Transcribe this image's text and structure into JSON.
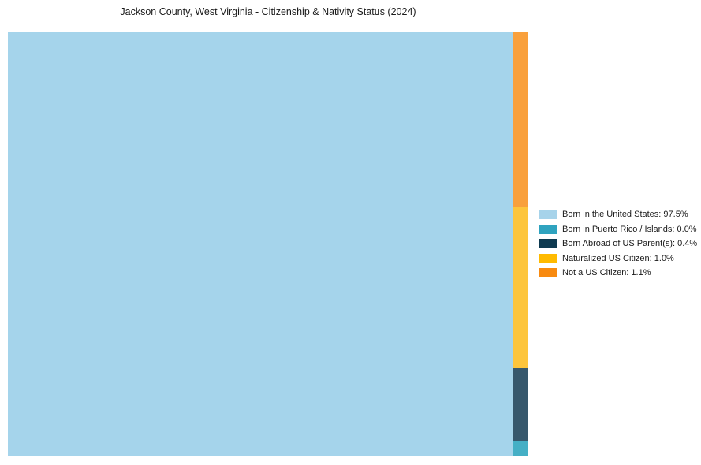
{
  "chart_data": {
    "type": "treemap",
    "title": "Jackson County, West Virginia - Citizenship & Nativity Status (2024)",
    "categories": [
      "Born in the United States",
      "Born in Puerto Rico / Islands",
      "Born Abroad of US Parent(s)",
      "Naturalized US Citizen",
      "Not a US Citizen"
    ],
    "values": [
      97.5,
      0.0,
      0.4,
      1.0,
      1.1
    ],
    "units": "percent",
    "legend_position": "right",
    "background_color": "#ffffff",
    "title_color": "#1a1a1a",
    "segments": [
      {
        "label": "Born in the United States",
        "value_pct": 97.5,
        "display": "Born in the United States: 97.5%",
        "color": "#a6d3ea",
        "fill": "#a5d4eb"
      },
      {
        "label": "Born in Puerto Rico / Islands",
        "value_pct": 0.0,
        "display": "Born in Puerto Rico / Islands: 0.0%",
        "color": "#2fa3bf",
        "fill": "#45afc5"
      },
      {
        "label": "Born Abroad of US Parent(s)",
        "value_pct": 0.4,
        "display": "Born Abroad of US Parent(s): 0.4%",
        "color": "#0e3a50",
        "fill": "#37586c"
      },
      {
        "label": "Naturalized US Citizen",
        "value_pct": 1.0,
        "display": "Naturalized US Citizen: 1.0%",
        "color": "#ffba00",
        "fill": "#fdc53c"
      },
      {
        "label": "Not a US Citizen",
        "value_pct": 1.1,
        "display": "Not a US Citizen: 1.1%",
        "color": "#f88a10",
        "fill": "#f9a03c"
      }
    ]
  }
}
